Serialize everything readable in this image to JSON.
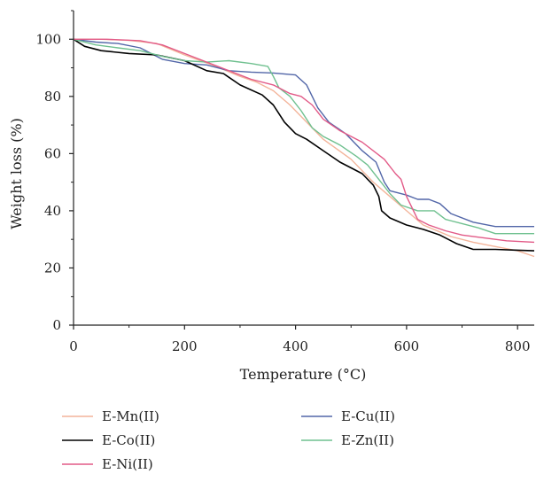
{
  "chart_data": {
    "type": "line",
    "xlabel": "Temperature (°C)",
    "ylabel": "Weight loss (%)",
    "xlim": [
      0,
      830
    ],
    "ylim": [
      0,
      110
    ],
    "xticks": [
      0,
      200,
      400,
      600,
      800
    ],
    "yticks": [
      0,
      20,
      40,
      60,
      80,
      100
    ],
    "grid": false,
    "legend_position": "bottom",
    "series": [
      {
        "name": "E-Mn(II)",
        "color": "#f3b49a",
        "points": [
          [
            0,
            100
          ],
          [
            50,
            100
          ],
          [
            100,
            99.6
          ],
          [
            150,
            98.5
          ],
          [
            200,
            94.5
          ],
          [
            250,
            91
          ],
          [
            300,
            87
          ],
          [
            330,
            85
          ],
          [
            360,
            82
          ],
          [
            390,
            77
          ],
          [
            420,
            71
          ],
          [
            450,
            65
          ],
          [
            500,
            58
          ],
          [
            540,
            50
          ],
          [
            570,
            45
          ],
          [
            600,
            40
          ],
          [
            630,
            35
          ],
          [
            680,
            31
          ],
          [
            720,
            29
          ],
          [
            760,
            27.5
          ],
          [
            800,
            26
          ],
          [
            830,
            24
          ]
        ]
      },
      {
        "name": "E-Cu(II)",
        "color": "#5266a8",
        "points": [
          [
            0,
            100
          ],
          [
            40,
            99
          ],
          [
            80,
            98.5
          ],
          [
            120,
            97
          ],
          [
            160,
            93
          ],
          [
            200,
            91.5
          ],
          [
            240,
            91
          ],
          [
            280,
            89
          ],
          [
            320,
            88.5
          ],
          [
            360,
            88.2
          ],
          [
            400,
            87.5
          ],
          [
            420,
            84
          ],
          [
            440,
            76
          ],
          [
            460,
            71
          ],
          [
            490,
            67
          ],
          [
            520,
            61
          ],
          [
            545,
            57
          ],
          [
            560,
            50
          ],
          [
            570,
            47
          ],
          [
            600,
            45.5
          ],
          [
            620,
            44
          ],
          [
            640,
            44
          ],
          [
            660,
            42.5
          ],
          [
            680,
            39
          ],
          [
            720,
            36
          ],
          [
            760,
            34.5
          ],
          [
            800,
            34.5
          ],
          [
            830,
            34.5
          ]
        ]
      },
      {
        "name": "E-Co(II)",
        "color": "#000000",
        "points": [
          [
            0,
            100
          ],
          [
            20,
            97.5
          ],
          [
            50,
            96
          ],
          [
            100,
            95
          ],
          [
            150,
            94.5
          ],
          [
            200,
            92.5
          ],
          [
            240,
            89
          ],
          [
            270,
            88
          ],
          [
            300,
            84
          ],
          [
            340,
            80.5
          ],
          [
            360,
            77
          ],
          [
            380,
            71
          ],
          [
            400,
            67
          ],
          [
            420,
            65
          ],
          [
            450,
            61
          ],
          [
            480,
            57
          ],
          [
            500,
            55
          ],
          [
            520,
            53
          ],
          [
            540,
            49
          ],
          [
            550,
            45
          ],
          [
            555,
            40
          ],
          [
            570,
            37.5
          ],
          [
            600,
            35
          ],
          [
            630,
            33.5
          ],
          [
            660,
            31.5
          ],
          [
            690,
            28.5
          ],
          [
            720,
            26.5
          ],
          [
            760,
            26.5
          ],
          [
            800,
            26.2
          ],
          [
            830,
            26
          ]
        ]
      },
      {
        "name": "E-Zn(II)",
        "color": "#6fc08f",
        "points": [
          [
            0,
            100
          ],
          [
            40,
            98
          ],
          [
            80,
            97
          ],
          [
            120,
            96
          ],
          [
            160,
            94
          ],
          [
            200,
            92.5
          ],
          [
            240,
            92
          ],
          [
            280,
            92.5
          ],
          [
            320,
            91.5
          ],
          [
            350,
            90.5
          ],
          [
            360,
            87
          ],
          [
            370,
            83
          ],
          [
            390,
            80
          ],
          [
            410,
            75
          ],
          [
            430,
            69
          ],
          [
            450,
            66
          ],
          [
            480,
            63
          ],
          [
            510,
            59
          ],
          [
            530,
            56
          ],
          [
            550,
            51
          ],
          [
            570,
            46
          ],
          [
            590,
            42
          ],
          [
            620,
            40
          ],
          [
            650,
            40
          ],
          [
            670,
            37
          ],
          [
            700,
            35.5
          ],
          [
            730,
            34
          ],
          [
            760,
            32
          ],
          [
            800,
            32
          ],
          [
            830,
            32
          ]
        ]
      },
      {
        "name": "E-Ni(II)",
        "color": "#e25a87",
        "points": [
          [
            0,
            100
          ],
          [
            60,
            100
          ],
          [
            120,
            99.5
          ],
          [
            160,
            98
          ],
          [
            200,
            95
          ],
          [
            240,
            92
          ],
          [
            280,
            89
          ],
          [
            320,
            86
          ],
          [
            360,
            84
          ],
          [
            390,
            81
          ],
          [
            410,
            80
          ],
          [
            430,
            77
          ],
          [
            450,
            72
          ],
          [
            480,
            68
          ],
          [
            520,
            64
          ],
          [
            560,
            58
          ],
          [
            580,
            53
          ],
          [
            590,
            51
          ],
          [
            600,
            45
          ],
          [
            620,
            37
          ],
          [
            640,
            35
          ],
          [
            670,
            33
          ],
          [
            700,
            31.5
          ],
          [
            740,
            30.5
          ],
          [
            780,
            29.5
          ],
          [
            830,
            29
          ]
        ]
      }
    ],
    "legend": [
      {
        "name": "E-Mn(II)",
        "color": "#f3b49a"
      },
      {
        "name": "E-Cu(II)",
        "color": "#5266a8"
      },
      {
        "name": "E-Co(II)",
        "color": "#000000"
      },
      {
        "name": "E-Zn(II)",
        "color": "#6fc08f"
      },
      {
        "name": "E-Ni(II)",
        "color": "#e25a87"
      }
    ]
  }
}
